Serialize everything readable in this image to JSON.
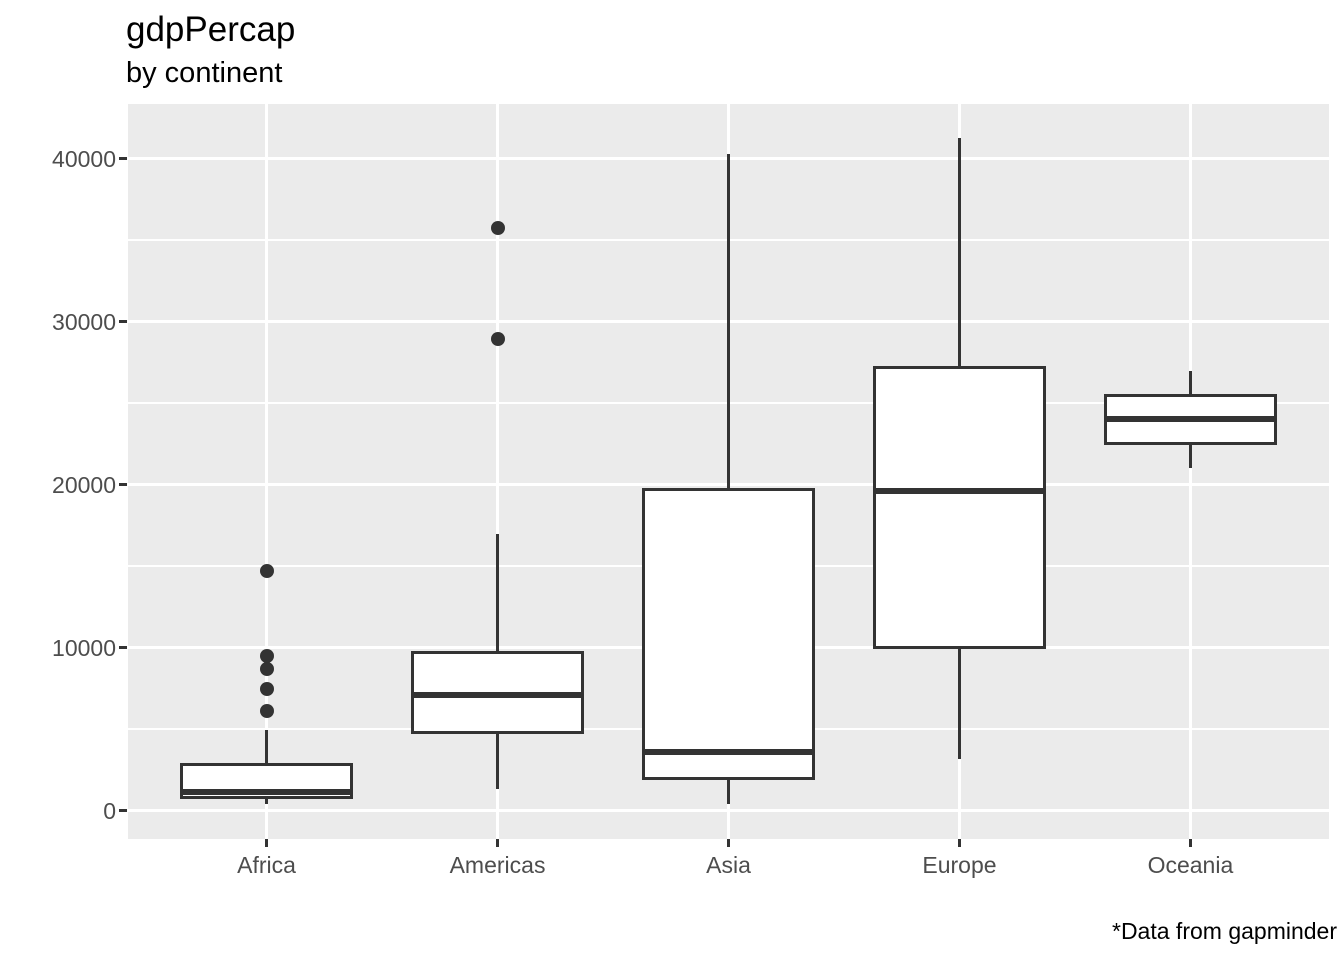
{
  "title": "gdpPercap",
  "subtitle": "by continent",
  "caption": "*Data from gapminder",
  "colors": {
    "panel_background": "#EBEBEB",
    "gridline": "#FFFFFF",
    "box_stroke": "#333333",
    "box_fill": "#FFFFFF",
    "outlier_fill": "#333333",
    "tick_mark": "#333333",
    "axis_text": "#4D4D4D",
    "title_text": "#000000"
  },
  "chart_data": {
    "type": "boxplot",
    "title": "gdpPercap",
    "subtitle": "by continent",
    "caption": "*Data from gapminder",
    "xlabel": "",
    "ylabel": "",
    "categories": [
      "Africa",
      "Americas",
      "Asia",
      "Europe",
      "Oceania"
    ],
    "ylim": [
      -1718,
      43348
    ],
    "yticks": [
      0,
      10000,
      20000,
      30000,
      40000
    ],
    "ytick_labels": [
      "0",
      "10000",
      "20000",
      "30000",
      "40000"
    ],
    "yminor": [
      5000,
      15000,
      25000,
      35000
    ],
    "grid": "white major+minor horizontal lines and major vertical lines on grey panel",
    "legend": "none",
    "series": [
      {
        "name": "Africa",
        "whislo": 400,
        "q1": 800,
        "med": 1180,
        "q3": 2850,
        "whishi": 4970,
        "outliers": [
          6100,
          7480,
          8680,
          9510,
          14720
        ]
      },
      {
        "name": "Americas",
        "whislo": 1340,
        "q1": 4830,
        "med": 7110,
        "q3": 9690,
        "whishi": 17000,
        "outliers": [
          28955,
          35767
        ]
      },
      {
        "name": "Asia",
        "whislo": 420,
        "q1": 1960,
        "med": 3645,
        "q3": 19720,
        "whishi": 40300,
        "outliers": []
      },
      {
        "name": "Europe",
        "whislo": 3190,
        "q1": 10030,
        "med": 19600,
        "q3": 27200,
        "whishi": 41280,
        "outliers": []
      },
      {
        "name": "Oceania",
        "whislo": 21050,
        "q1": 22540,
        "med": 24020,
        "q3": 25480,
        "whishi": 27000,
        "outliers": []
      }
    ]
  }
}
